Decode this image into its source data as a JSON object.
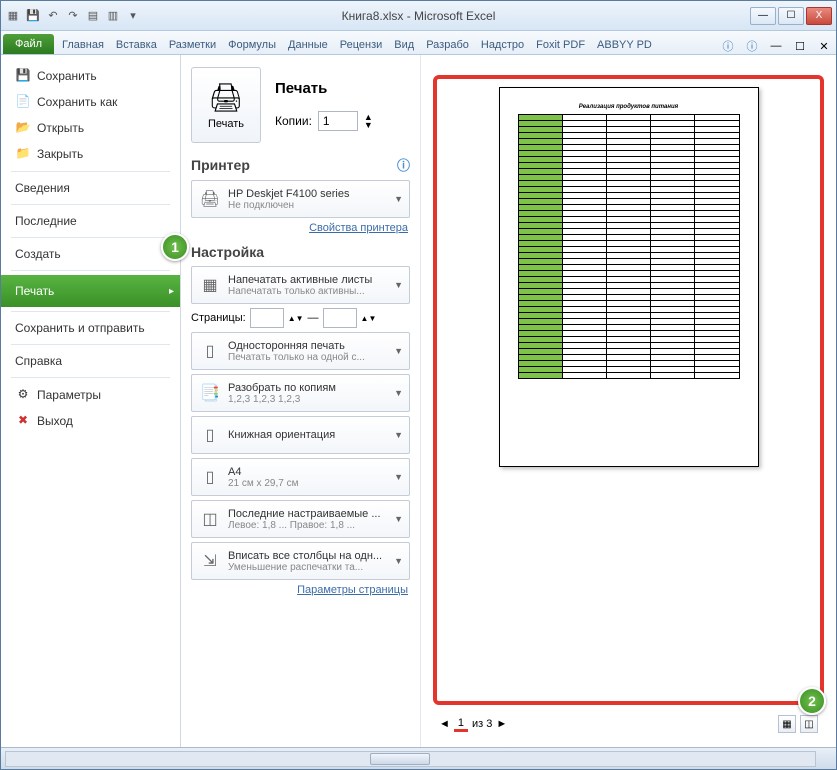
{
  "window": {
    "title": "Книга8.xlsx - Microsoft Excel"
  },
  "win_btns": {
    "min": "—",
    "max": "☐",
    "close": "X"
  },
  "tabs": {
    "file": "Файл",
    "list": [
      "Главная",
      "Вставка",
      "Разметки",
      "Формулы",
      "Данные",
      "Рецензи",
      "Вид",
      "Разрабо",
      "Надстро",
      "Foxit PDF",
      "ABBYY PD"
    ]
  },
  "nav": {
    "save": "Сохранить",
    "saveas": "Сохранить как",
    "open": "Открыть",
    "close": "Закрыть",
    "info": "Сведения",
    "recent": "Последние",
    "new": "Создать",
    "print": "Печать",
    "share": "Сохранить и отправить",
    "help": "Справка",
    "options": "Параметры",
    "exit": "Выход"
  },
  "markers": {
    "m1": "1",
    "m2": "2"
  },
  "print": {
    "title": "Печать",
    "btn": "Печать",
    "copies_lbl": "Копии:",
    "copies_val": "1",
    "printer_h": "Принтер",
    "printer_name": "HP Deskjet F4100 series",
    "printer_status": "Не подключен",
    "printer_props": "Свойства принтера",
    "settings_h": "Настройка",
    "opt_sheets_t": "Напечатать активные листы",
    "opt_sheets_s": "Напечатать только активны...",
    "pages_lbl": "Страницы:",
    "pages_sep": "—",
    "opt_sided_t": "Односторонняя печать",
    "opt_sided_s": "Печатать только на одной с...",
    "opt_collate_t": "Разобрать по копиям",
    "opt_collate_s": "1,2,3   1,2,3   1,2,3",
    "opt_orient_t": "Книжная ориентация",
    "opt_size_t": "A4",
    "opt_size_s": "21 см x 29,7 см",
    "opt_margins_t": "Последние настраиваемые ...",
    "opt_margins_s": "Левое: 1,8 ...   Правое: 1,8 ...",
    "opt_scale_t": "Вписать все столбцы на одн...",
    "opt_scale_s": "Уменьшение распечатки та...",
    "page_setup": "Параметры страницы"
  },
  "preview": {
    "doc_title": "Реализация продуктов питания",
    "page_cur": "1",
    "page_of": "из 3",
    "nav_prev": "◄",
    "nav_next": "►"
  },
  "colors": {
    "accent_green": "#3a9128",
    "marker_red": "#e5342c",
    "table_green": "#7fc24a"
  }
}
